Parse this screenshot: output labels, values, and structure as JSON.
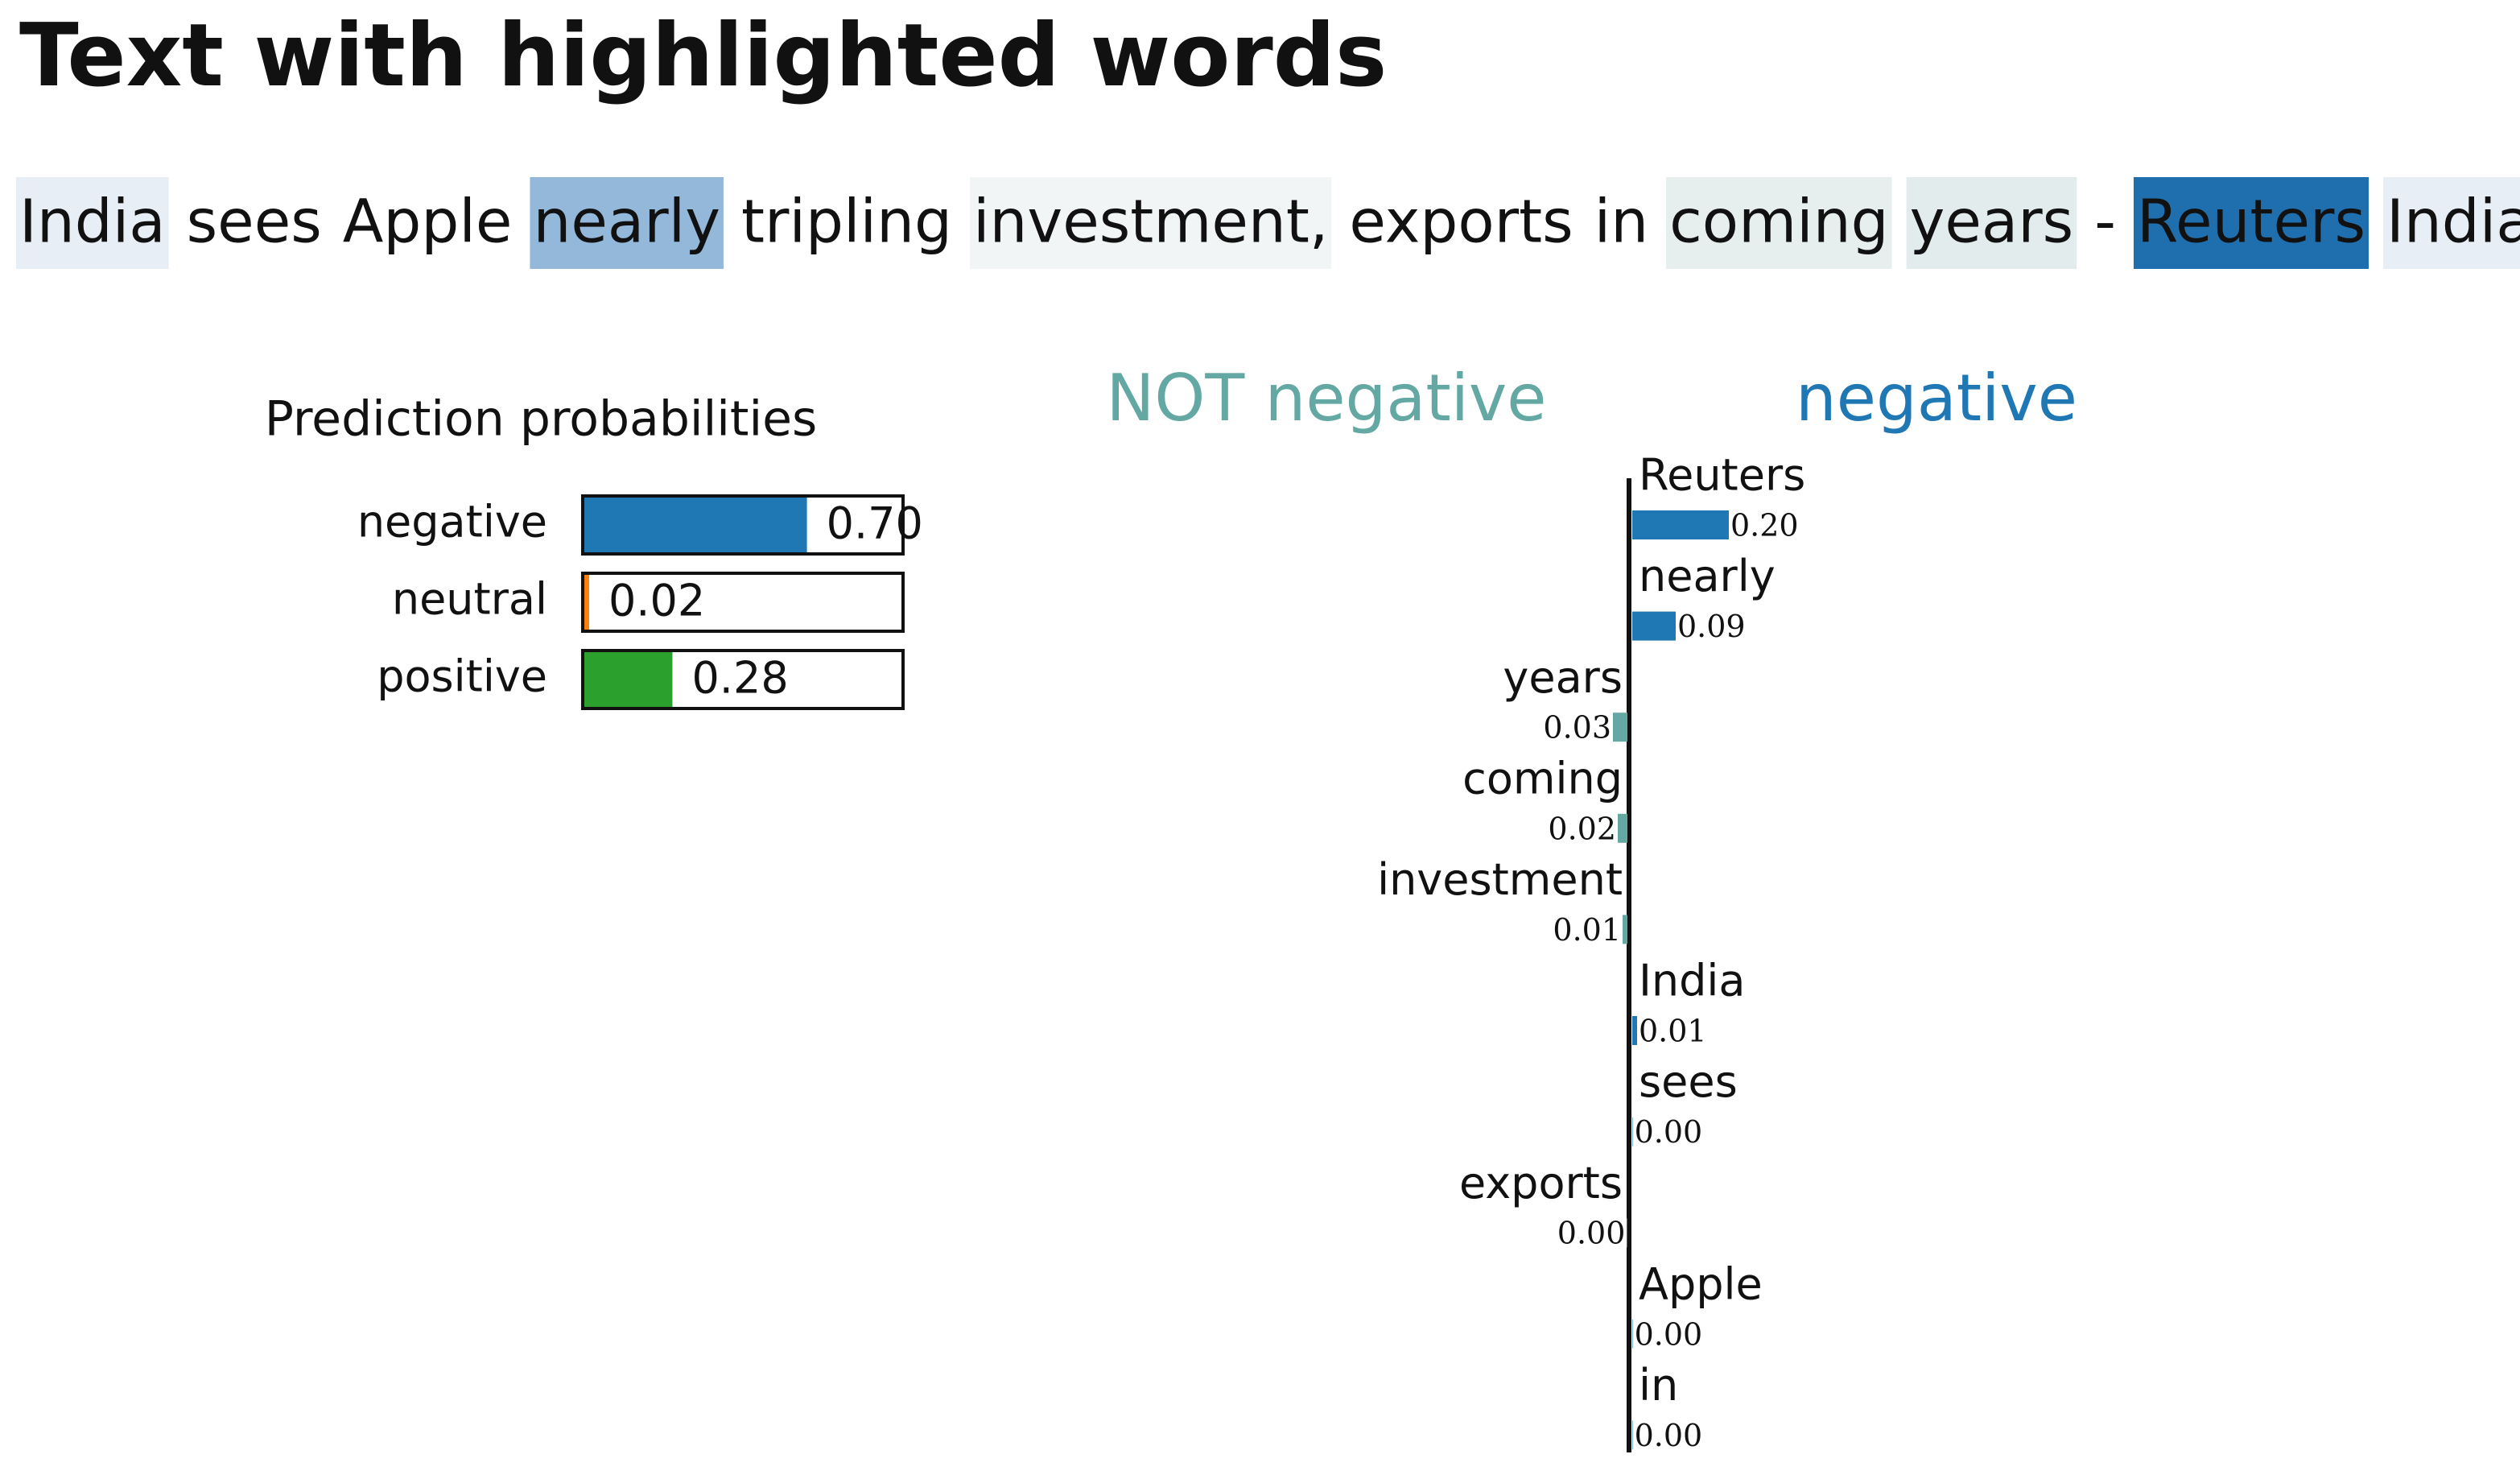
{
  "title": "Text with highlighted words",
  "text": {
    "tokens": [
      {
        "text": "India",
        "highlight": "#e8eef5"
      },
      {
        "text": "sees"
      },
      {
        "text": "Apple"
      },
      {
        "text": "nearly",
        "highlight": "#93b8da"
      },
      {
        "text": "tripling"
      },
      {
        "text": "investment,",
        "highlight": "#f1f5f6"
      },
      {
        "text": "exports"
      },
      {
        "text": "in"
      },
      {
        "text": "coming",
        "highlight": "#e6efed"
      },
      {
        "text": "years",
        "highlight": "#e3ecec"
      },
      {
        "text": "-"
      },
      {
        "text": "Reuters",
        "highlight": "#1f6fae"
      },
      {
        "text": "India",
        "highlight": "#e8eef5"
      }
    ]
  },
  "chart_data": [
    {
      "type": "probability-bar",
      "title": "Prediction probabilities",
      "categories": [
        "negative",
        "neutral",
        "positive"
      ],
      "values": [
        0.7,
        0.02,
        0.28
      ],
      "value_labels": [
        "0.70",
        "0.02",
        "0.28"
      ],
      "colors": [
        "#1f77b4",
        "#ff7f0e",
        "#2ca02c"
      ],
      "xlim": [
        0,
        1
      ]
    },
    {
      "type": "weight-bar",
      "categories": [
        "Reuters",
        "nearly",
        "years",
        "coming",
        "investment",
        "India",
        "sees",
        "exports",
        "Apple",
        "in"
      ],
      "series": [
        {
          "name": "NOT negative",
          "color": "#63a8a2",
          "side": "left",
          "values": [
            null,
            null,
            0.03,
            0.02,
            0.01,
            null,
            null,
            0.001,
            null,
            null
          ],
          "value_labels": [
            null,
            null,
            "0.03",
            "0.02",
            "0.01",
            null,
            null,
            "0.00",
            null,
            null
          ]
        },
        {
          "name": "negative",
          "color": "#1f77b4",
          "side": "right",
          "values": [
            0.2,
            0.09,
            null,
            null,
            null,
            0.01,
            0.001,
            null,
            0.001,
            0.001
          ],
          "value_labels": [
            "0.20",
            "0.09",
            null,
            null,
            null,
            "0.01",
            "0.00",
            null,
            "0.00",
            "0.00"
          ]
        }
      ]
    }
  ]
}
